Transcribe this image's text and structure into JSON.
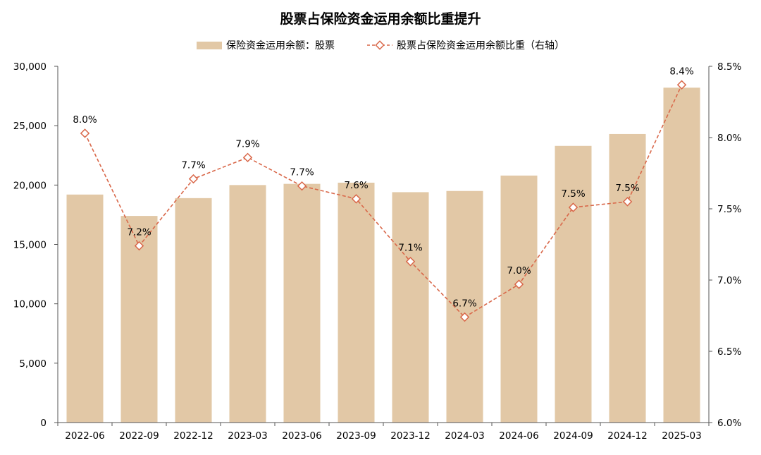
{
  "chart_data": {
    "type": "bar",
    "title": "股票占保险资金运用余额比重提升",
    "categories": [
      "2022-06",
      "2022-09",
      "2022-12",
      "2023-03",
      "2023-06",
      "2023-09",
      "2023-12",
      "2024-03",
      "2024-06",
      "2024-09",
      "2024-12",
      "2025-03"
    ],
    "series": [
      {
        "name": "保险资金运用余额：股票",
        "type": "bar",
        "axis": "left",
        "color": "#e2c8a6",
        "values": [
          19200,
          17400,
          18900,
          20000,
          20100,
          20200,
          19400,
          19500,
          20800,
          23300,
          24300,
          28200
        ]
      },
      {
        "name": "股票占保险资金运用余额比重（右轴）",
        "type": "line",
        "axis": "right",
        "color": "#d9684a",
        "values": [
          8.03,
          7.24,
          7.71,
          7.86,
          7.66,
          7.57,
          7.13,
          6.74,
          6.97,
          7.51,
          7.55,
          8.37
        ],
        "labels": [
          "8.0%",
          "7.2%",
          "7.7%",
          "7.9%",
          "7.7%",
          "7.6%",
          "7.1%",
          "6.7%",
          "7.0%",
          "7.5%",
          "7.5%",
          "8.4%"
        ]
      }
    ],
    "yleft": {
      "min": 0,
      "max": 30000,
      "ticks": [
        0,
        5000,
        10000,
        15000,
        20000,
        25000,
        30000
      ],
      "tick_labels": [
        "0",
        "5,000",
        "10,000",
        "15,000",
        "20,000",
        "25,000",
        "30,000"
      ]
    },
    "yright": {
      "min": 6.0,
      "max": 8.5,
      "ticks": [
        6.0,
        6.5,
        7.0,
        7.5,
        8.0,
        8.5
      ],
      "tick_labels": [
        "6.0%",
        "6.5%",
        "7.0%",
        "7.5%",
        "8.0%",
        "8.5%"
      ]
    },
    "grid": false,
    "legend_position": "top"
  }
}
